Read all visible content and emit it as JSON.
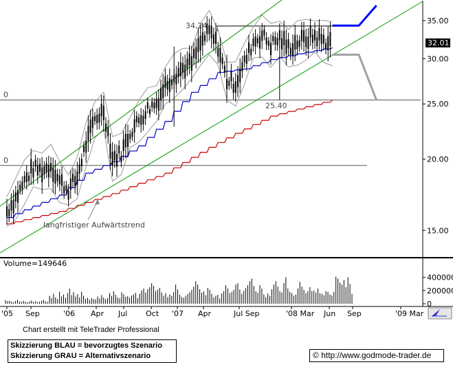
{
  "chart_data": [
    {
      "type": "candlestick",
      "title": "",
      "ylim": [
        13.7,
        37.2
      ],
      "yscale": "log",
      "y_ticks": [
        "35.00",
        "30.00",
        "25.00",
        "20.00",
        "15.00"
      ],
      "x_ticks": [
        "'05",
        "Sep",
        "'06",
        "Apr",
        "Jul",
        "Oct",
        "'07",
        "Apr",
        "Jul Sep",
        "'08 Mar",
        "Jun",
        "Sep",
        "'09 Mar"
      ],
      "current_price_label": "32.01",
      "grid": false,
      "colors": {
        "price": "#000000",
        "ma_short": "#0000cc",
        "ma_long": "#cc0000",
        "trend_channel": "#009900",
        "bands": "#999999",
        "scenario_blue": "#0000ff",
        "scenario_gray": "#a0a0a0",
        "current_price_box": "#000000"
      },
      "price_series": [
        {
          "t": "2005-07",
          "v": 16.2
        },
        {
          "t": "2005-08",
          "v": 17.1
        },
        {
          "t": "2005-09",
          "v": 18.3
        },
        {
          "t": "2005-10",
          "v": 19.3
        },
        {
          "t": "2005-11",
          "v": 19.1
        },
        {
          "t": "2005-12",
          "v": 19.5
        },
        {
          "t": "2006-01",
          "v": 18.3
        },
        {
          "t": "2006-02",
          "v": 17.7
        },
        {
          "t": "2006-03",
          "v": 18.6
        },
        {
          "t": "2006-04",
          "v": 21.3
        },
        {
          "t": "2006-05",
          "v": 23.5
        },
        {
          "t": "2006-06",
          "v": 24.4
        },
        {
          "t": "2006-07",
          "v": 20.1
        },
        {
          "t": "2006-08",
          "v": 20.5
        },
        {
          "t": "2006-09",
          "v": 22.3
        },
        {
          "t": "2006-10",
          "v": 23.4
        },
        {
          "t": "2006-11",
          "v": 24.5
        },
        {
          "t": "2006-12",
          "v": 25.1
        },
        {
          "t": "2007-01",
          "v": 27.0
        },
        {
          "t": "2007-02",
          "v": 28.1
        },
        {
          "t": "2007-03",
          "v": 28.9
        },
        {
          "t": "2007-04",
          "v": 29.5
        },
        {
          "t": "2007-05",
          "v": 31.9
        },
        {
          "t": "2007-06",
          "v": 33.5
        },
        {
          "t": "2007-07",
          "v": 31.5
        },
        {
          "t": "2007-08",
          "v": 27.5
        },
        {
          "t": "2007-09",
          "v": 27.2
        },
        {
          "t": "2007-10",
          "v": 29.5
        },
        {
          "t": "2007-11",
          "v": 32.1
        },
        {
          "t": "2007-12",
          "v": 33.0
        },
        {
          "t": "2008-01",
          "v": 31.8
        },
        {
          "t": "2008-02",
          "v": 32.6
        },
        {
          "t": "2008-03",
          "v": 31.4
        },
        {
          "t": "2008-04",
          "v": 32.1
        },
        {
          "t": "2008-05",
          "v": 32.5
        },
        {
          "t": "2008-06",
          "v": 32.9
        },
        {
          "t": "2008-07",
          "v": 32.3
        },
        {
          "t": "2008-08",
          "v": 32.01
        }
      ],
      "ma_short": [
        {
          "t": "2005-07",
          "v": 15.8
        },
        {
          "t": "2006-01",
          "v": 17.3
        },
        {
          "t": "2006-04",
          "v": 18.9
        },
        {
          "t": "2006-07",
          "v": 19.8
        },
        {
          "t": "2006-10",
          "v": 21.1
        },
        {
          "t": "2007-01",
          "v": 23.3
        },
        {
          "t": "2007-04",
          "v": 26.2
        },
        {
          "t": "2007-07",
          "v": 28.4
        },
        {
          "t": "2007-10",
          "v": 28.8
        },
        {
          "t": "2008-01",
          "v": 29.9
        },
        {
          "t": "2008-04",
          "v": 30.6
        },
        {
          "t": "2008-08",
          "v": 31.4
        }
      ],
      "ma_long": [
        {
          "t": "2005-07",
          "v": 15.4
        },
        {
          "t": "2006-01",
          "v": 16.2
        },
        {
          "t": "2006-07",
          "v": 17.4
        },
        {
          "t": "2007-01",
          "v": 18.9
        },
        {
          "t": "2007-07",
          "v": 21.4
        },
        {
          "t": "2008-01",
          "v": 23.8
        },
        {
          "t": "2008-08",
          "v": 25.4
        }
      ],
      "horizontal_levels": [
        {
          "label": "34,24",
          "value": 34.24
        },
        {
          "label": "25.40",
          "value": 25.4
        },
        {
          "label": "0",
          "value": 25.4
        },
        {
          "label": "0",
          "value": 19.5
        }
      ],
      "scenario_blue": [
        {
          "t": "2008-08",
          "v": 34.3
        },
        {
          "t": "2008-11",
          "v": 34.3
        },
        {
          "t": "2009-01",
          "v": 37.2
        }
      ],
      "scenario_gray": [
        {
          "t": "2008-08",
          "v": 30.5
        },
        {
          "t": "2008-11",
          "v": 30.5
        },
        {
          "t": "2009-01",
          "v": 25.4
        }
      ],
      "annotations": [
        {
          "text": "langfristiger Aufwärtstrend"
        }
      ]
    },
    {
      "type": "bar",
      "title": "Volume=149646",
      "ylim": [
        0,
        520000
      ],
      "y_ticks": [
        "400000",
        "200000",
        "0"
      ],
      "values": [
        55000,
        38000,
        45000,
        30000,
        25000,
        40000,
        60000,
        35000,
        28000,
        45000,
        30000,
        22000,
        35000,
        50000,
        28000,
        40000,
        25000,
        30000,
        45000,
        60000,
        35000,
        28000,
        120000,
        85000,
        150000,
        95000,
        70000,
        180000,
        110000,
        140000,
        90000,
        160000,
        230000,
        130000,
        175000,
        110000,
        145000,
        95000,
        180000,
        120000,
        75000,
        90000,
        60000,
        85000,
        70000,
        65000,
        110000,
        80000,
        130000,
        95000,
        70000,
        85000,
        160000,
        120000,
        190000,
        135000,
        95000,
        80000,
        175000,
        145000,
        105000,
        115000,
        95000,
        125000,
        140000,
        165000,
        85000,
        150000,
        200000,
        230000,
        170000,
        220000,
        250000,
        310000,
        270000,
        190000,
        215000,
        240000,
        170000,
        120000,
        160000,
        100000,
        140000,
        120000,
        175000,
        290000,
        215000,
        135000,
        105000,
        90000,
        120000,
        150000,
        175000,
        210000,
        260000,
        340000,
        290000,
        220000,
        165000,
        185000,
        130000,
        240000,
        210000,
        150000,
        95000,
        120000,
        135000,
        80000,
        155000,
        190000,
        280000,
        230000,
        160000,
        180000,
        210000,
        290000,
        310000,
        215000,
        150000,
        195000,
        235000,
        280000,
        340000,
        380000,
        270000,
        190000,
        165000,
        280000,
        230000,
        140000,
        100000,
        155000,
        120000,
        220000,
        290000,
        340000,
        260000,
        190000,
        170000,
        310000,
        400000,
        230000,
        180000,
        160000,
        120000,
        140000,
        230000,
        330000,
        260000,
        210000,
        160000,
        190000,
        250000,
        190000,
        200000,
        170000,
        230000,
        160000,
        150000,
        130000,
        190000,
        180000,
        140000,
        125000,
        180000,
        410000,
        380000,
        320000,
        290000,
        360000,
        250000,
        400000,
        300000,
        150000
      ]
    }
  ],
  "page": {
    "credit": "Chart erstellt mit TeleTrader Professional",
    "legend_blue": "Skizzierung BLAU = bevorzugtes Szenario",
    "legend_gray": "Skizzierung GRAU = Alternativszenario",
    "source": "http://www.godmode-trader.de",
    "copyright_symbol": "©"
  }
}
